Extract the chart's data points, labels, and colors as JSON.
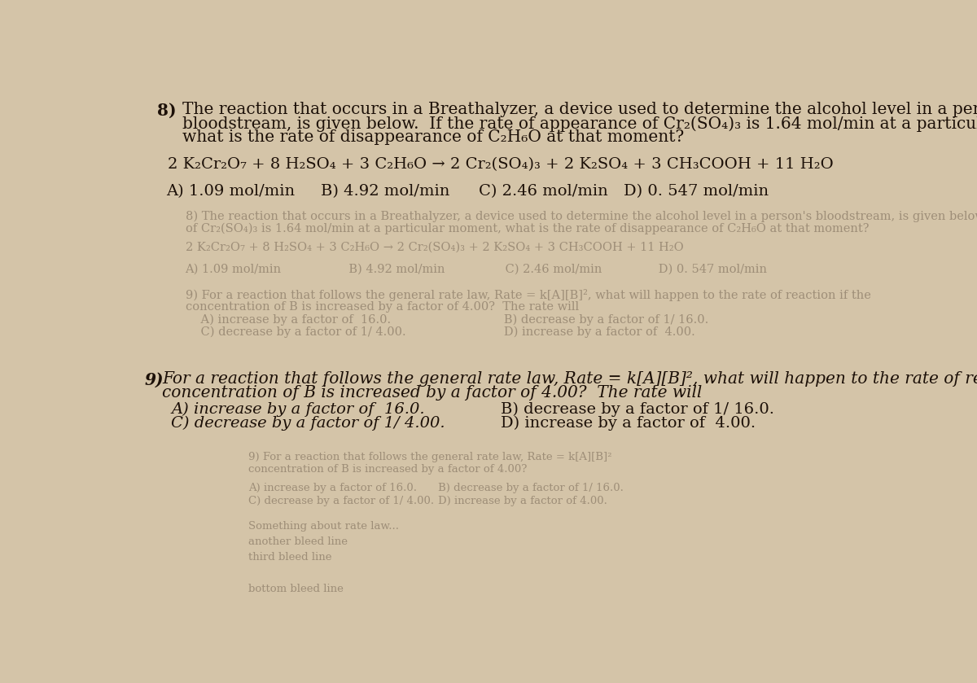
{
  "background_color": "#d4c4a8",
  "text_color": "#1c1008",
  "q8_number": "8)",
  "q8_line1": "The reaction that occurs in a Breathalyzer, a device used to determine the alcohol level in a person's",
  "q8_line2": "bloodstream, is given below.  If the rate of appearance of Cr₂(SO₄)₃ is 1.64 mol/min at a particular moment,",
  "q8_line3": "what is the rate of disappearance of C₂H₆O at that moment?",
  "equation": "2 K₂Cr₂O₇ + 8 H₂SO₄ + 3 C₂H₆O → 2 Cr₂(SO₄)₃ + 2 K₂SO₄ + 3 CH₃COOH + 11 H₂O",
  "q8_choiceA": "A) 1.09 mol/min",
  "q8_choiceB": "B) 4.92 mol/min",
  "q8_choiceC": "C) 2.46 mol/min",
  "q8_choiceD": "D) 0. 547 mol/min",
  "q9_number": "9)",
  "q9_line1": "For a reaction that follows the general rate law, Rate = k[A][B]², what will happen to the rate of reaction if the",
  "q9_line2": "concentration of B is increased by a factor of 4.00?  The rate will",
  "q9_choiceA": "A) increase by a factor of  16.0.",
  "q9_choiceB": "B) decrease by a factor of 1/ 16.0.",
  "q9_choiceC": "C) decrease by a factor of 1/ 4.00.",
  "q9_choiceD": "D) increase by a factor of  4.00.",
  "main_fontsize": 14.5,
  "equation_fontsize": 14.0,
  "choice_fontsize": 14.0,
  "ghost_color": "#9e8e78",
  "ghost_fontsize": 10.5
}
